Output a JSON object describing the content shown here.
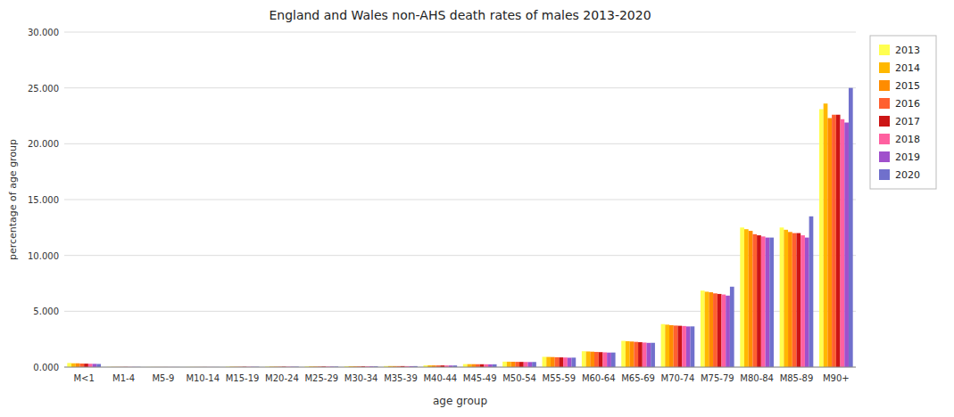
{
  "chart_data": {
    "type": "bar",
    "title": "England and Wales non-AHS death rates of males 2013-2020",
    "x_label": "age group",
    "y_label": "percentage of age group",
    "categories": [
      "M<1",
      "M1-4",
      "M5-9",
      "M10-14",
      "M15-19",
      "M20-24",
      "M25-29",
      "M30-34",
      "M35-39",
      "M40-44",
      "M45-49",
      "M50-54",
      "M55-59",
      "M60-64",
      "M65-69",
      "M70-74",
      "M75-79",
      "M80-84",
      "M85-89",
      "M90+"
    ],
    "series": [
      {
        "name": "2013",
        "color": "#FFFF50",
        "values": [
          0.37,
          0.02,
          0.008,
          0.01,
          0.035,
          0.045,
          0.06,
          0.075,
          0.095,
          0.155,
          0.27,
          0.49,
          0.92,
          1.42,
          2.35,
          3.85,
          6.85,
          12.5,
          12.5,
          23.1
        ]
      },
      {
        "name": "2014",
        "color": "#FFB800",
        "values": [
          0.34,
          0.02,
          0.008,
          0.01,
          0.035,
          0.045,
          0.06,
          0.075,
          0.095,
          0.155,
          0.265,
          0.485,
          0.91,
          1.4,
          2.32,
          3.8,
          6.75,
          12.35,
          12.3,
          23.6
        ]
      },
      {
        "name": "2015",
        "color": "#FF8C00",
        "values": [
          0.34,
          0.018,
          0.008,
          0.009,
          0.033,
          0.043,
          0.058,
          0.073,
          0.092,
          0.152,
          0.262,
          0.48,
          0.9,
          1.38,
          2.29,
          3.75,
          6.7,
          12.2,
          12.1,
          22.3
        ]
      },
      {
        "name": "2016",
        "color": "#FF6030",
        "values": [
          0.32,
          0.018,
          0.007,
          0.009,
          0.033,
          0.043,
          0.057,
          0.072,
          0.09,
          0.15,
          0.258,
          0.47,
          0.88,
          1.36,
          2.26,
          3.72,
          6.6,
          11.9,
          12.0,
          22.6
        ]
      },
      {
        "name": "2017",
        "color": "#CC1515",
        "values": [
          0.31,
          0.018,
          0.007,
          0.009,
          0.033,
          0.043,
          0.057,
          0.072,
          0.09,
          0.15,
          0.255,
          0.465,
          0.87,
          1.34,
          2.23,
          3.7,
          6.55,
          11.8,
          12.0,
          22.6
        ]
      },
      {
        "name": "2018",
        "color": "#FF60A0",
        "values": [
          0.3,
          0.017,
          0.007,
          0.009,
          0.032,
          0.042,
          0.056,
          0.071,
          0.088,
          0.148,
          0.252,
          0.46,
          0.86,
          1.32,
          2.2,
          3.68,
          6.5,
          11.7,
          11.8,
          22.2
        ]
      },
      {
        "name": "2019",
        "color": "#A050CC",
        "values": [
          0.29,
          0.017,
          0.007,
          0.008,
          0.031,
          0.041,
          0.055,
          0.07,
          0.086,
          0.145,
          0.248,
          0.452,
          0.84,
          1.3,
          2.17,
          3.64,
          6.4,
          11.6,
          11.6,
          21.9
        ]
      },
      {
        "name": "2020",
        "color": "#7070CC",
        "values": [
          0.28,
          0.017,
          0.007,
          0.008,
          0.031,
          0.041,
          0.055,
          0.07,
          0.09,
          0.148,
          0.252,
          0.458,
          0.848,
          1.305,
          2.175,
          3.645,
          7.2,
          11.6,
          13.5,
          25.0
        ]
      }
    ],
    "ylim": [
      0,
      30.0
    ],
    "yticks": [
      {
        "value": 0.0,
        "label": "0.000"
      },
      {
        "value": 5.0,
        "label": "5.000"
      },
      {
        "value": 10.0,
        "label": "10.000"
      },
      {
        "value": 15.0,
        "label": "15.000"
      },
      {
        "value": 20.0,
        "label": "20.000"
      },
      {
        "value": 25.0,
        "label": "25.000"
      },
      {
        "value": 30.0,
        "label": "30.000"
      }
    ],
    "grid": true,
    "legend": "right"
  }
}
